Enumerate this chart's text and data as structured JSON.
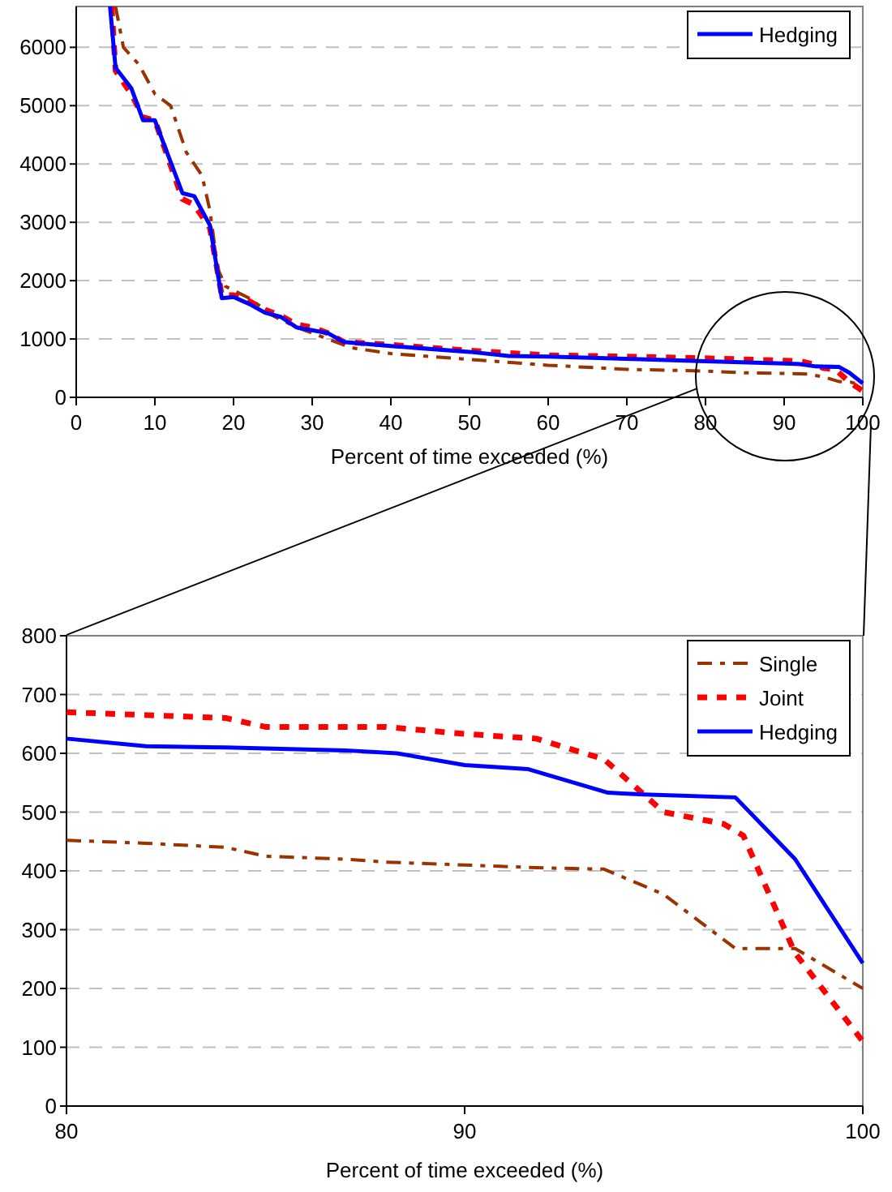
{
  "chart_data": [
    {
      "type": "line",
      "xlabel": "Percent of time exceeded (%)",
      "xlim": [
        0,
        100
      ],
      "xticks": [
        0,
        10,
        20,
        30,
        40,
        50,
        60,
        70,
        80,
        90,
        100
      ],
      "ylim": [
        0,
        6700
      ],
      "yticks": [
        0,
        1000,
        2000,
        3000,
        4000,
        5000,
        6000
      ],
      "grid": "y",
      "legend": "top right",
      "marker": "none",
      "series": [
        {
          "color": "#993300",
          "line_style": "dashed",
          "x": [
            5,
            6,
            8,
            10,
            12,
            14,
            16,
            17,
            18,
            19,
            22,
            25,
            28,
            32,
            35,
            40,
            45,
            50,
            60,
            70,
            80,
            85,
            90,
            93,
            95,
            97,
            98.5,
            100
          ],
          "values": [
            6700,
            6000,
            5700,
            5200,
            5000,
            4200,
            3800,
            3200,
            2200,
            1900,
            1700,
            1400,
            1200,
            1000,
            850,
            750,
            700,
            650,
            550,
            480,
            450,
            420,
            410,
            400,
            350,
            270,
            260,
            200
          ]
        },
        {
          "color": "#ff0000",
          "line_style": "dotted",
          "x": [
            4.5,
            5,
            7,
            8.5,
            10,
            13.5,
            15,
            17,
            18.5,
            20,
            22,
            24,
            26,
            28,
            30,
            32,
            34,
            40,
            50,
            60,
            70,
            80,
            90,
            92,
            94,
            95,
            96.5,
            98.3,
            100
          ],
          "values": [
            6700,
            5600,
            5200,
            4800,
            4750,
            3400,
            3300,
            2900,
            1750,
            1750,
            1650,
            1500,
            1400,
            1250,
            1200,
            1100,
            950,
            900,
            800,
            720,
            700,
            670,
            630,
            620,
            560,
            500,
            480,
            260,
            110
          ]
        },
        {
          "name": "Hedging",
          "color": "#0000ff",
          "line_style": "solid",
          "x": [
            4.3,
            5,
            7,
            8.5,
            10,
            13.5,
            15,
            17,
            18.5,
            20,
            22,
            24,
            26,
            28,
            30,
            32,
            34,
            40,
            50,
            55,
            60,
            70,
            80,
            90,
            92,
            94,
            97,
            98.3,
            100
          ],
          "values": [
            6700,
            5650,
            5300,
            4750,
            4750,
            3500,
            3450,
            2950,
            1700,
            1720,
            1600,
            1450,
            1380,
            1200,
            1150,
            1100,
            950,
            880,
            780,
            710,
            700,
            660,
            620,
            580,
            570,
            530,
            520,
            420,
            240
          ]
        }
      ]
    },
    {
      "type": "line",
      "xlabel": "Percent of time exceeded (%)",
      "xlim": [
        80,
        100
      ],
      "xticks": [
        80,
        90,
        100
      ],
      "ylim": [
        0,
        800
      ],
      "yticks": [
        0,
        100,
        200,
        300,
        400,
        500,
        600,
        700,
        800
      ],
      "grid": "y",
      "legend": "top right",
      "marker": "none",
      "series": [
        {
          "name": "Single",
          "color": "#993300",
          "line_style": "dashed",
          "x": [
            80,
            82,
            84,
            85,
            87,
            88,
            90,
            92,
            93.5,
            95,
            96.8,
            98.3,
            100
          ],
          "values": [
            452,
            447,
            440,
            425,
            420,
            415,
            410,
            405,
            403,
            360,
            268,
            268,
            200
          ]
        },
        {
          "name": "Joint",
          "color": "#ff0000",
          "line_style": "dotted",
          "x": [
            80,
            82,
            84,
            85,
            88,
            90,
            91.8,
            93.5,
            95,
            96.5,
            97,
            98.3,
            100
          ],
          "values": [
            670,
            665,
            660,
            645,
            645,
            633,
            625,
            590,
            500,
            480,
            460,
            260,
            110
          ]
        },
        {
          "name": "Hedging",
          "color": "#0000ff",
          "line_style": "solid",
          "x": [
            80,
            82,
            84,
            87,
            88.3,
            90,
            91.6,
            93.6,
            94.5,
            96.8,
            98.3,
            100
          ],
          "values": [
            625,
            612,
            610,
            605,
            600,
            580,
            573,
            533,
            530,
            525,
            420,
            243
          ]
        }
      ]
    }
  ]
}
